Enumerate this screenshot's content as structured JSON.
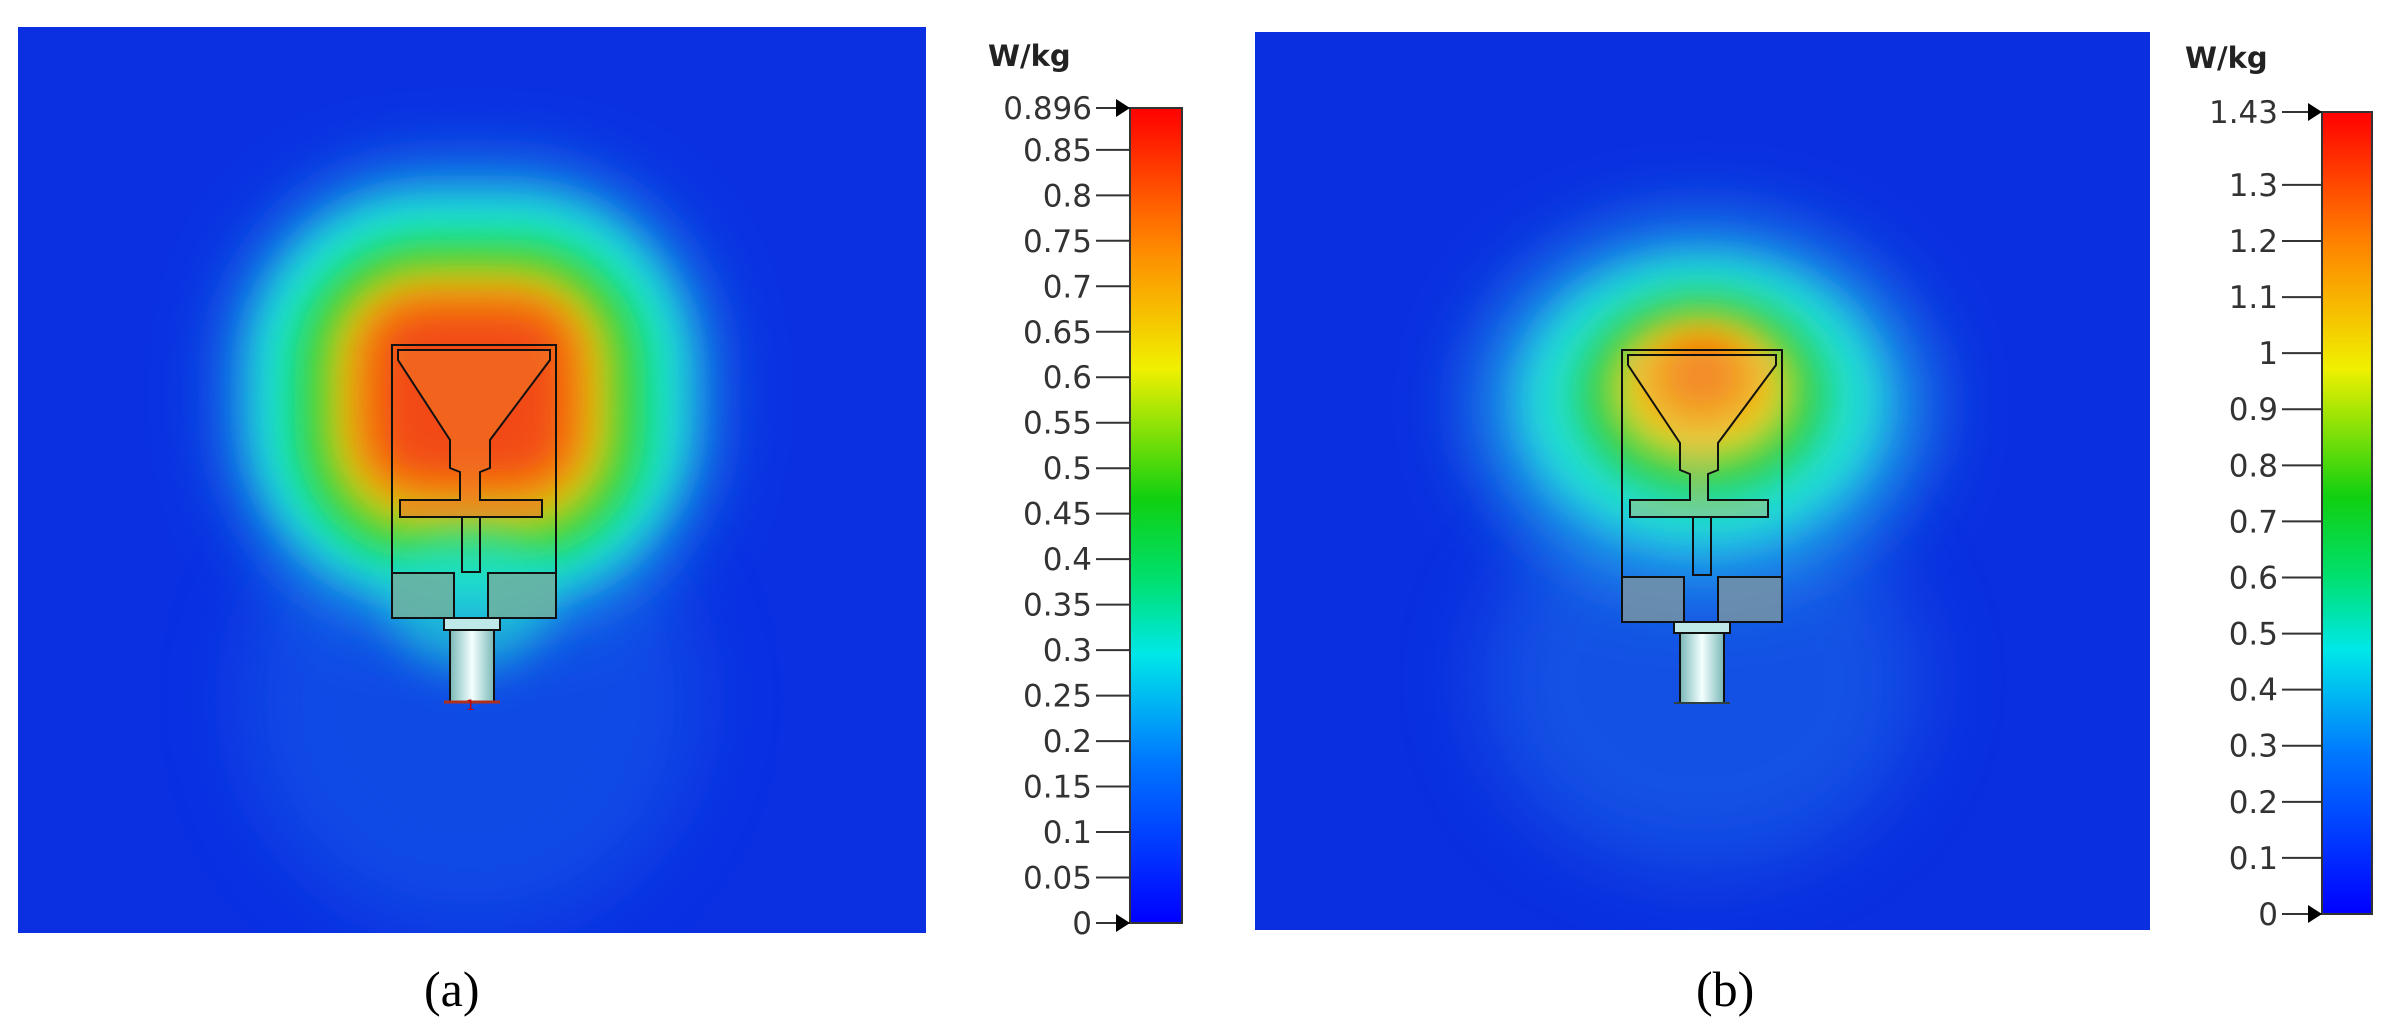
{
  "figure": {
    "panels": [
      {
        "id": "a",
        "caption": "(a)",
        "colorbar": {
          "unit": "W/kg",
          "max_label": "0.896",
          "ticks": [
            "0.85",
            "0.8",
            "0.75",
            "0.7",
            "0.65",
            "0.6",
            "0.55",
            "0.5",
            "0.45",
            "0.4",
            "0.35",
            "0.3",
            "0.25",
            "0.2",
            "0.15",
            "0.1",
            "0.05",
            "0"
          ]
        }
      },
      {
        "id": "b",
        "caption": "(b)",
        "colorbar": {
          "unit": "W/kg",
          "max_label": "1.43",
          "ticks": [
            "1.3",
            "1.2",
            "1.1",
            "1",
            "0.9",
            "0.8",
            "0.7",
            "0.6",
            "0.5",
            "0.4",
            "0.3",
            "0.2",
            "0.1",
            "0"
          ]
        }
      }
    ],
    "port_label": "1",
    "colors": {
      "field_low": "#0a2fe0",
      "field_high": "#e8301e",
      "scale_stops": [
        "#0000ff",
        "#00a0ff",
        "#00e8e0",
        "#00d020",
        "#f0f000",
        "#ff8000",
        "#ff0000"
      ]
    }
  }
}
